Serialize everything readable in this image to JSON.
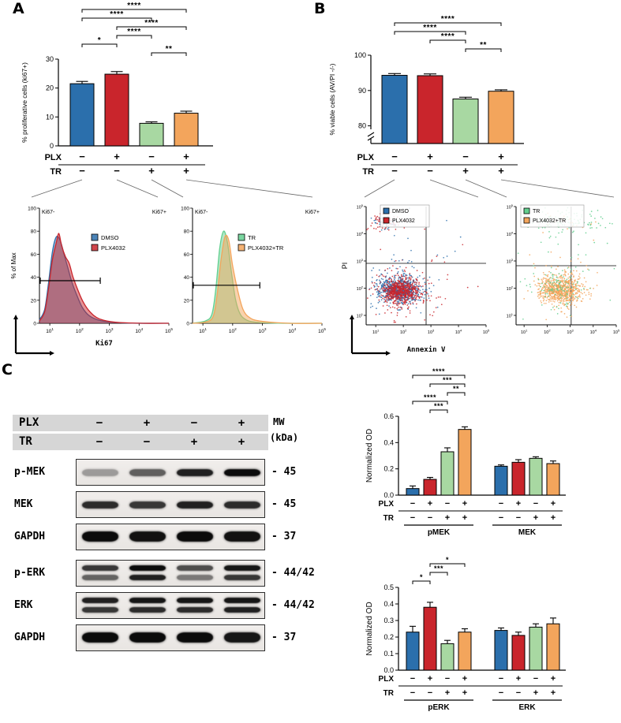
{
  "figure": {
    "panel_a": "A",
    "panel_b": "B",
    "panel_c": "C"
  },
  "palette": {
    "blue": "#2B6FAC",
    "red": "#C9252C",
    "green": "#A8D8A2",
    "orange": "#F3A55C",
    "green_bright": "#63CF8F"
  },
  "chart_data": [
    {
      "id": "A_bars",
      "type": "bar",
      "ylabel": "% proliferative cells (ki67+)",
      "ylim": [
        0,
        30
      ],
      "yticks": [
        0,
        10,
        20,
        30
      ],
      "categories": [
        "DMSO",
        "PLX4032",
        "TR",
        "PLX4032+TR"
      ],
      "values": [
        21.5,
        24.8,
        7.8,
        11.3
      ],
      "errors": [
        0.8,
        0.9,
        0.5,
        0.7
      ],
      "colors": [
        "blue",
        "red",
        "green",
        "orange"
      ],
      "x_rows": [
        {
          "label": "PLX",
          "signs": [
            "−",
            "+",
            "−",
            "+"
          ]
        },
        {
          "label": "TR",
          "signs": [
            "−",
            "−",
            "+",
            "+"
          ]
        }
      ],
      "brackets": [
        {
          "from": 0,
          "to": 3,
          "label": "****",
          "level": 5
        },
        {
          "from": 0,
          "to": 2,
          "label": "****",
          "level": 4
        },
        {
          "from": 1,
          "to": 3,
          "label": "****",
          "level": 3
        },
        {
          "from": 1,
          "to": 2,
          "label": "****",
          "level": 2
        },
        {
          "from": 0,
          "to": 1,
          "label": "*",
          "level": 1
        },
        {
          "from": 2,
          "to": 3,
          "label": "**",
          "level": 0
        }
      ]
    },
    {
      "id": "B_bars",
      "type": "bar",
      "ylabel": "% viable cells (AV/PI -/-)",
      "ylim": [
        75,
        100
      ],
      "yticks": [
        80,
        90,
        100
      ],
      "axis_break": true,
      "categories": [
        "DMSO",
        "PLX4032",
        "TR",
        "PLX4032+TR"
      ],
      "values": [
        94.3,
        94.2,
        87.6,
        89.8
      ],
      "errors": [
        0.5,
        0.5,
        0.5,
        0.4
      ],
      "colors": [
        "blue",
        "red",
        "green",
        "orange"
      ],
      "x_rows": [
        {
          "label": "PLX",
          "signs": [
            "−",
            "+",
            "−",
            "+"
          ]
        },
        {
          "label": "TR",
          "signs": [
            "−",
            "−",
            "+",
            "+"
          ]
        }
      ],
      "brackets": [
        {
          "from": 0,
          "to": 3,
          "label": "****",
          "level": 3
        },
        {
          "from": 0,
          "to": 2,
          "label": "****",
          "level": 2
        },
        {
          "from": 1,
          "to": 2,
          "label": "****",
          "level": 1
        },
        {
          "from": 2,
          "to": 3,
          "label": "**",
          "level": 0
        }
      ]
    },
    {
      "id": "C_top",
      "type": "bar",
      "ylabel": "Normalized OD",
      "ylim": [
        0,
        0.6
      ],
      "yticks": [
        0,
        0.2,
        0.4,
        0.6
      ],
      "ytick_labels": [
        "0.0",
        "0.2",
        "0.4",
        "0.6"
      ],
      "colors": [
        "blue",
        "red",
        "green",
        "orange"
      ],
      "groups": [
        {
          "label": "pMEK",
          "values": [
            0.05,
            0.12,
            0.33,
            0.5
          ],
          "errors": [
            0.02,
            0.015,
            0.03,
            0.02
          ]
        },
        {
          "label": "MEK",
          "values": [
            0.22,
            0.25,
            0.28,
            0.24
          ],
          "errors": [
            0.01,
            0.02,
            0.012,
            0.02
          ]
        }
      ],
      "x_rows": [
        {
          "label": "PLX",
          "signs": [
            "−",
            "+",
            "−",
            "+",
            "−",
            "+",
            "−",
            "+"
          ]
        },
        {
          "label": "TR",
          "signs": [
            "−",
            "−",
            "+",
            "+",
            "−",
            "−",
            "+",
            "+"
          ]
        }
      ],
      "brackets": [
        {
          "from": 0,
          "to": 3,
          "label": "****",
          "level": 4
        },
        {
          "from": 1,
          "to": 3,
          "label": "***",
          "level": 3
        },
        {
          "from": 2,
          "to": 3,
          "label": "**",
          "level": 2
        },
        {
          "from": 0,
          "to": 2,
          "label": "****",
          "level": 1
        },
        {
          "from": 1,
          "to": 2,
          "label": "***",
          "level": 0
        }
      ]
    },
    {
      "id": "C_bottom",
      "type": "bar",
      "ylabel": "Normalized OD",
      "ylim": [
        0,
        0.5
      ],
      "yticks": [
        0,
        0.1,
        0.2,
        0.3,
        0.4,
        0.5
      ],
      "ytick_labels": [
        "0.0",
        "0.1",
        "0.2",
        "0.3",
        "0.4",
        "0.5"
      ],
      "colors": [
        "blue",
        "red",
        "green",
        "orange"
      ],
      "groups": [
        {
          "label": "pERK",
          "values": [
            0.23,
            0.38,
            0.16,
            0.23
          ],
          "errors": [
            0.035,
            0.03,
            0.02,
            0.02
          ]
        },
        {
          "label": "ERK",
          "values": [
            0.24,
            0.21,
            0.26,
            0.28
          ],
          "errors": [
            0.015,
            0.02,
            0.02,
            0.035
          ]
        }
      ],
      "x_rows": [
        {
          "label": "PLX",
          "signs": [
            "−",
            "+",
            "−",
            "+",
            "−",
            "+",
            "−",
            "+"
          ]
        },
        {
          "label": "TR",
          "signs": [
            "−",
            "−",
            "+",
            "+",
            "−",
            "−",
            "+",
            "+"
          ]
        }
      ],
      "brackets": [
        {
          "from": 1,
          "to": 3,
          "label": "*",
          "level": 2
        },
        {
          "from": 1,
          "to": 2,
          "label": "***",
          "level": 1
        },
        {
          "from": 0,
          "to": 1,
          "label": "*",
          "level": 0
        }
      ]
    },
    {
      "id": "A_hist_left",
      "type": "histogram",
      "ylabel": "% of Max",
      "yticks": [
        0,
        20,
        40,
        60,
        80,
        100
      ],
      "xlabel": "Ki67",
      "xtick_exponents": [
        1,
        2,
        3,
        4,
        5
      ],
      "corner_left": "Ki67-",
      "corner_right": "Ki67+",
      "legend": [
        {
          "label": "DMSO",
          "color": "blue"
        },
        {
          "label": "PLX4032",
          "color": "red"
        }
      ],
      "gate": {
        "y": 37,
        "x0": 0.0,
        "x1": 0.47
      },
      "series": [
        {
          "color": "blue",
          "points": [
            [
              0,
              3
            ],
            [
              0.04,
              12
            ],
            [
              0.07,
              35
            ],
            [
              0.1,
              62
            ],
            [
              0.13,
              75
            ],
            [
              0.16,
              72
            ],
            [
              0.19,
              60
            ],
            [
              0.22,
              48
            ],
            [
              0.25,
              36
            ],
            [
              0.29,
              24
            ],
            [
              0.33,
              14
            ],
            [
              0.38,
              7
            ],
            [
              0.45,
              3
            ],
            [
              0.55,
              1
            ],
            [
              0.75,
              0
            ],
            [
              1,
              0
            ]
          ]
        },
        {
          "color": "red",
          "points": [
            [
              0,
              2
            ],
            [
              0.04,
              10
            ],
            [
              0.07,
              30
            ],
            [
              0.1,
              55
            ],
            [
              0.13,
              70
            ],
            [
              0.15,
              78
            ],
            [
              0.17,
              68
            ],
            [
              0.2,
              58
            ],
            [
              0.23,
              52
            ],
            [
              0.26,
              40
            ],
            [
              0.3,
              28
            ],
            [
              0.34,
              18
            ],
            [
              0.39,
              10
            ],
            [
              0.46,
              4
            ],
            [
              0.58,
              1
            ],
            [
              0.8,
              0
            ],
            [
              1,
              0
            ]
          ]
        }
      ]
    },
    {
      "id": "A_hist_right",
      "type": "histogram",
      "yticks": [
        0,
        20,
        40,
        60,
        80,
        100
      ],
      "xtick_exponents": [
        1,
        2,
        3,
        4,
        5
      ],
      "corner_left": "Ki67-",
      "corner_right": "Ki67+",
      "legend": [
        {
          "label": "TR",
          "color": "green_bright"
        },
        {
          "label": "PLX4032+TR",
          "color": "orange"
        }
      ],
      "gate": {
        "y": 33,
        "x0": 0.0,
        "x1": 0.52
      },
      "series": [
        {
          "color": "green_bright",
          "points": [
            [
              0,
              0
            ],
            [
              0.1,
              2
            ],
            [
              0.15,
              8
            ],
            [
              0.18,
              30
            ],
            [
              0.21,
              65
            ],
            [
              0.24,
              80
            ],
            [
              0.27,
              70
            ],
            [
              0.3,
              45
            ],
            [
              0.33,
              22
            ],
            [
              0.36,
              10
            ],
            [
              0.4,
              4
            ],
            [
              0.48,
              1
            ],
            [
              0.7,
              0
            ],
            [
              1,
              0
            ]
          ]
        },
        {
          "color": "orange",
          "points": [
            [
              0,
              0
            ],
            [
              0.1,
              1
            ],
            [
              0.16,
              6
            ],
            [
              0.19,
              25
            ],
            [
              0.22,
              55
            ],
            [
              0.25,
              75
            ],
            [
              0.28,
              72
            ],
            [
              0.31,
              50
            ],
            [
              0.35,
              28
            ],
            [
              0.39,
              12
            ],
            [
              0.44,
              5
            ],
            [
              0.52,
              2
            ],
            [
              0.75,
              0
            ],
            [
              1,
              0
            ]
          ]
        }
      ]
    },
    {
      "id": "B_scatter_left",
      "type": "scatter",
      "ylabel": "PI",
      "xlabel": "Annexin V",
      "xtick_exponents": [
        1,
        2,
        3,
        4,
        5
      ],
      "ytick_exponents": [
        1,
        2,
        3,
        4,
        5
      ],
      "legend": [
        {
          "label": "DMSO",
          "color": "blue"
        },
        {
          "label": "PLX4032",
          "color": "red"
        }
      ],
      "cross": {
        "x": 0.5,
        "y": 0.52
      },
      "clusters": [
        {
          "color": "blue",
          "cx": 0.27,
          "cy": 0.3,
          "sx": 0.085,
          "sy": 0.055,
          "n": 550
        },
        {
          "color": "red",
          "cx": 0.29,
          "cy": 0.29,
          "sx": 0.075,
          "sy": 0.05,
          "n": 650
        },
        {
          "color": "blue",
          "cx": 0.28,
          "cy": 0.31,
          "sx": 0.16,
          "sy": 0.11,
          "n": 120
        },
        {
          "color": "red",
          "cx": 0.3,
          "cy": 0.3,
          "sx": 0.17,
          "sy": 0.12,
          "n": 120
        },
        {
          "color": "red",
          "cx": 0.16,
          "cy": 0.87,
          "sx": 0.07,
          "sy": 0.035,
          "n": 80
        },
        {
          "color": "blue",
          "cx": 0.15,
          "cy": 0.86,
          "sx": 0.06,
          "sy": 0.03,
          "n": 45
        },
        {
          "color": "red",
          "cx": 0.6,
          "cy": 0.4,
          "sx": 0.25,
          "sy": 0.25,
          "n": 20
        },
        {
          "color": "blue",
          "cx": 0.55,
          "cy": 0.5,
          "sx": 0.3,
          "sy": 0.3,
          "n": 15
        }
      ]
    },
    {
      "id": "B_scatter_right",
      "type": "scatter",
      "xtick_exponents": [
        1,
        2,
        3,
        4,
        5
      ],
      "ytick_exponents": [
        1,
        2,
        3,
        4,
        5
      ],
      "legend": [
        {
          "label": "TR",
          "color": "green_bright"
        },
        {
          "label": "PLX4032+TR",
          "color": "orange"
        }
      ],
      "cross": {
        "x": 0.55,
        "y": 0.5
      },
      "clusters": [
        {
          "color": "orange",
          "cx": 0.44,
          "cy": 0.3,
          "sx": 0.1,
          "sy": 0.06,
          "n": 700
        },
        {
          "color": "orange",
          "cx": 0.45,
          "cy": 0.31,
          "sx": 0.18,
          "sy": 0.12,
          "n": 90
        },
        {
          "color": "green_bright",
          "cx": 0.45,
          "cy": 0.32,
          "sx": 0.12,
          "sy": 0.08,
          "n": 110
        },
        {
          "color": "green_bright",
          "cx": 0.48,
          "cy": 0.88,
          "sx": 0.2,
          "sy": 0.045,
          "n": 110
        },
        {
          "color": "orange",
          "cx": 0.5,
          "cy": 0.86,
          "sx": 0.15,
          "sy": 0.04,
          "n": 20
        },
        {
          "color": "green_bright",
          "cx": 0.5,
          "cy": 0.6,
          "sx": 0.28,
          "sy": 0.22,
          "n": 40
        }
      ]
    }
  ],
  "blots": {
    "header_rows": [
      {
        "label": "PLX",
        "signs": [
          "−",
          "+",
          "−",
          "+"
        ]
      },
      {
        "label": "TR",
        "signs": [
          "−",
          "−",
          "+",
          "+"
        ]
      }
    ],
    "mw_header": [
      "MW",
      "(kDa)"
    ],
    "rows": [
      {
        "label": "p-MEK",
        "mw": "- 45",
        "style": "single",
        "bands": [
          0.35,
          0.62,
          0.9,
          1
        ]
      },
      {
        "label": "MEK",
        "mw": "- 45",
        "style": "single",
        "bands": [
          0.85,
          0.8,
          0.9,
          0.85
        ]
      },
      {
        "label": "GAPDH",
        "mw": "- 37",
        "style": "thick",
        "bands": [
          1,
          0.97,
          1,
          0.97
        ]
      },
      {
        "label": "p-ERK",
        "mw": "- 44/42",
        "style": "double",
        "bands": [
          [
            0.8,
            0.6
          ],
          [
            1,
            0.9
          ],
          [
            0.7,
            0.5
          ],
          [
            0.95,
            0.8
          ]
        ]
      },
      {
        "label": "ERK",
        "mw": "- 44/42",
        "style": "double",
        "bands": [
          [
            0.9,
            0.8
          ],
          [
            0.95,
            0.85
          ],
          [
            0.95,
            0.85
          ],
          [
            0.95,
            0.9
          ]
        ]
      },
      {
        "label": "GAPDH",
        "mw": "- 37",
        "style": "thick",
        "bands": [
          1,
          1,
          1,
          0.95
        ]
      }
    ]
  }
}
